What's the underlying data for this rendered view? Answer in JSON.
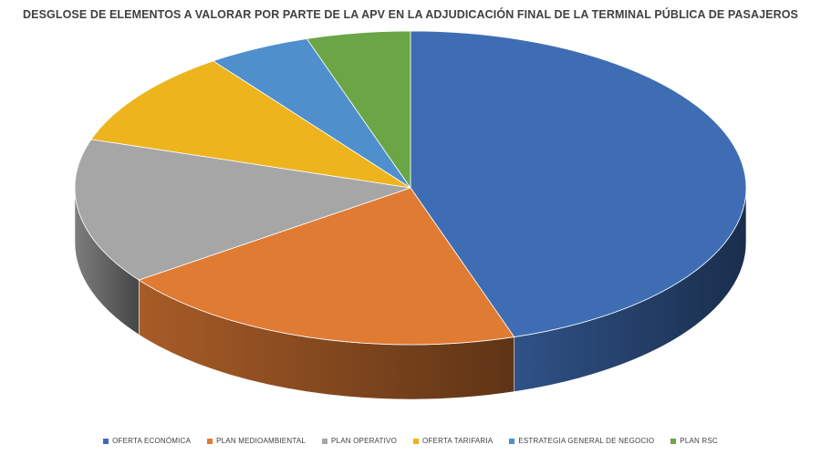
{
  "chart_data": {
    "type": "pie",
    "title": "DESGLOSE DE ELEMENTOS A VALORAR POR PARTE DE LA APV EN LA ADJUDICACIÓN FINAL DE LA TERMINAL PÚBLICA DE PASAJEROS",
    "legend_position": "bottom",
    "style": "3d",
    "slices": [
      {
        "label": "OFERTA ECONÓMICA",
        "value": 45,
        "color": "#3F6DB4"
      },
      {
        "label": "PLAN MEDIOAMBIENTAL",
        "value": 20,
        "color": "#E07B34"
      },
      {
        "label": "PLAN OPERATIVO",
        "value": 15,
        "color": "#A6A6A6"
      },
      {
        "label": "OFERTA TARIFARIA",
        "value": 10,
        "color": "#EDB41E"
      },
      {
        "label": "ESTRATEGIA GENERAL DE NEGOCIO",
        "value": 5,
        "color": "#4F8FCC"
      },
      {
        "label": "PLAN RSC",
        "value": 5,
        "color": "#6BA545"
      }
    ]
  }
}
